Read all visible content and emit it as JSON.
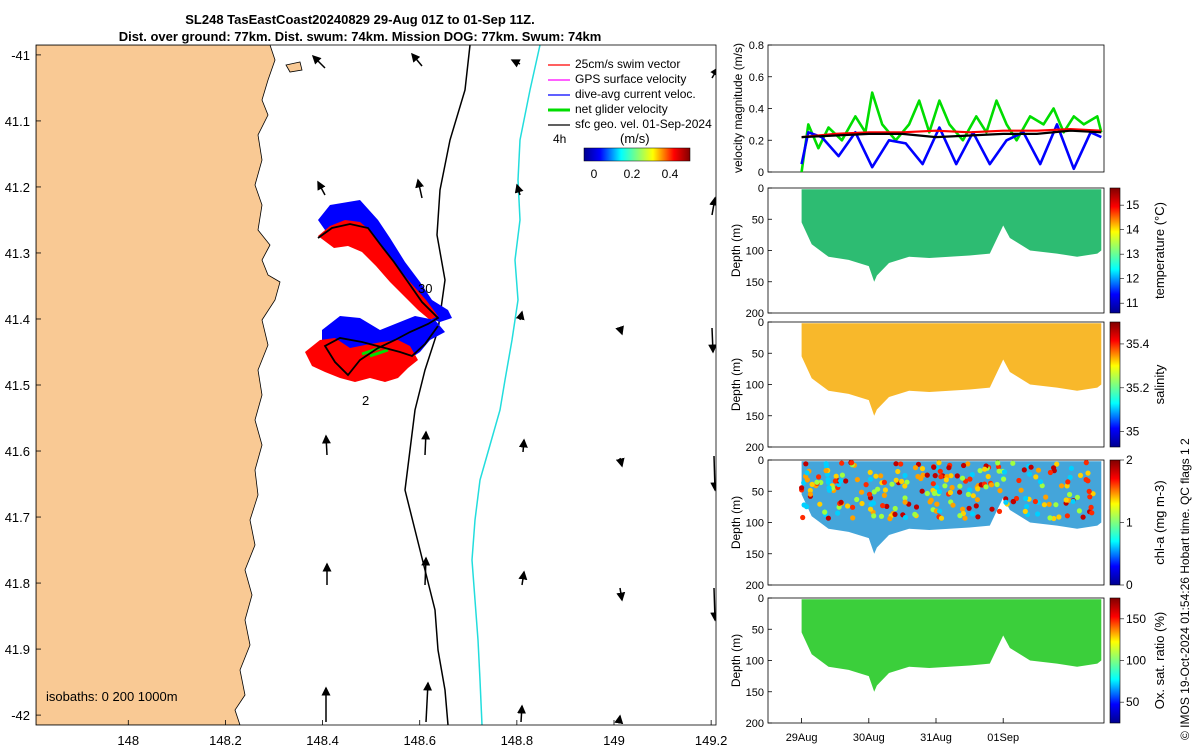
{
  "header": {
    "title_line1": "SL248 TasEastCoast20240829 29-Aug 01Z to 01-Sep 11Z.",
    "title_line2": "Dist. over ground: 77km. Dist. swum: 74km. Mission DOG: 77km. Swum: 74km"
  },
  "credit": "© IMOS 19-Oct-2024 01:54:26 Hobart time. QC flags 1  2",
  "colors": {
    "land": "#f9c994",
    "swim": "#ff0000",
    "gps": "#ff00ff",
    "current": "#0000ff",
    "net": "#00dd00",
    "sfc": "#000000",
    "isobath": "#00cccc",
    "track": "#000000"
  },
  "map": {
    "x_ticks": [
      "148",
      "148.2",
      "148.4",
      "148.6",
      "148.8",
      "149",
      "149.2"
    ],
    "y_ticks": [
      "-41",
      "41.1",
      "41.2",
      "41.3",
      "41.4",
      "41.5",
      "41.6",
      "41.7",
      "41.8",
      "41.9",
      "-42"
    ],
    "lon_range": [
      147.81,
      149.21
    ],
    "lat_range": [
      -42.015,
      -40.985
    ],
    "legend": [
      {
        "label": "25cm/s swim vector",
        "color": "#ff0000"
      },
      {
        "label": "GPS surface velocity",
        "color": "#ff00ff"
      },
      {
        "label": "dive-avg current veloc.",
        "color": "#0000ff"
      },
      {
        "label": "net glider velocity",
        "color": "#00dd00"
      },
      {
        "label": "sfc geo. vel. 01-Sep-2024",
        "color": "#000000"
      }
    ],
    "legend_extra": "4h",
    "colorbar_label": "(m/s)",
    "colorbar_ticks": [
      "0",
      "0.2",
      "0.4"
    ],
    "isobath_label": "isobaths: 0   200  1000m",
    "annotations": [
      "30",
      "2"
    ]
  },
  "chart_data": [
    {
      "type": "line",
      "title": "",
      "ylabel": "velocity magnitude (m/s)",
      "ylim": [
        0,
        0.8
      ],
      "yticks": [
        "0",
        "0.2",
        "0.4",
        "0.6",
        "0.8"
      ],
      "xlim_days": [
        28.5,
        33.5
      ],
      "series": [
        {
          "name": "net glider velocity",
          "color": "#00dd00",
          "x": [
            29.0,
            29.1,
            29.25,
            29.4,
            29.6,
            29.8,
            29.95,
            30.05,
            30.2,
            30.4,
            30.6,
            30.75,
            30.9,
            31.05,
            31.2,
            31.4,
            31.6,
            31.75,
            31.9,
            32.05,
            32.2,
            32.4,
            32.6,
            32.75,
            32.9,
            33.05,
            33.2,
            33.4,
            33.46
          ],
          "y": [
            0.0,
            0.3,
            0.15,
            0.28,
            0.2,
            0.35,
            0.25,
            0.5,
            0.3,
            0.2,
            0.3,
            0.45,
            0.25,
            0.45,
            0.3,
            0.2,
            0.35,
            0.25,
            0.45,
            0.3,
            0.2,
            0.35,
            0.3,
            0.4,
            0.25,
            0.35,
            0.3,
            0.35,
            0.25
          ]
        },
        {
          "name": "dive-avg current veloc.",
          "color": "#0000ff",
          "x": [
            29.0,
            29.1,
            29.3,
            29.55,
            29.8,
            30.05,
            30.3,
            30.55,
            30.8,
            31.05,
            31.3,
            31.55,
            31.8,
            32.05,
            32.3,
            32.55,
            32.8,
            33.05,
            33.3,
            33.46
          ],
          "y": [
            0.05,
            0.25,
            0.22,
            0.1,
            0.25,
            0.03,
            0.2,
            0.18,
            0.05,
            0.28,
            0.05,
            0.25,
            0.05,
            0.2,
            0.25,
            0.05,
            0.3,
            0.02,
            0.25,
            0.22
          ]
        },
        {
          "name": "swim vector",
          "color": "#ff0000",
          "x": [
            29.0,
            29.5,
            30.0,
            30.5,
            31.0,
            31.5,
            32.0,
            32.5,
            33.0,
            33.46
          ],
          "y": [
            0.22,
            0.24,
            0.25,
            0.25,
            0.26,
            0.25,
            0.26,
            0.26,
            0.27,
            0.26
          ]
        },
        {
          "name": "sfc geo. vel.",
          "color": "#000000",
          "x": [
            29.0,
            29.5,
            30.0,
            30.5,
            31.0,
            31.5,
            32.0,
            32.5,
            33.0,
            33.46
          ],
          "y": [
            0.22,
            0.23,
            0.24,
            0.24,
            0.22,
            0.23,
            0.24,
            0.24,
            0.26,
            0.25
          ]
        }
      ]
    },
    {
      "type": "scatter",
      "ylabel": "Depth (m)",
      "cbar_label": "temperature (°C)",
      "ylim": [
        200,
        0
      ],
      "yticks": [
        "0",
        "50",
        "100",
        "150",
        "200"
      ],
      "cbar_ticks": [
        "11",
        "12",
        "13",
        "14",
        "15"
      ],
      "cbar_range": [
        10.6,
        15.7
      ],
      "fill_color": "#22b86a",
      "x_days": [
        29.0,
        29.15,
        29.4,
        29.7,
        30.0,
        30.08,
        30.12,
        30.3,
        30.6,
        30.9,
        31.2,
        31.5,
        31.8,
        32.0,
        32.1,
        32.4,
        32.8,
        33.1,
        33.4,
        33.46
      ],
      "max_depth_m": [
        55,
        90,
        110,
        115,
        125,
        150,
        140,
        120,
        110,
        112,
        110,
        108,
        105,
        60,
        80,
        100,
        105,
        110,
        105,
        100
      ]
    },
    {
      "type": "scatter",
      "ylabel": "Depth (m)",
      "cbar_label": "salinity",
      "ylim": [
        200,
        0
      ],
      "yticks": [
        "0",
        "50",
        "100",
        "150",
        "200"
      ],
      "cbar_ticks": [
        "35",
        "35.2",
        "35.4"
      ],
      "cbar_range": [
        34.93,
        35.5
      ],
      "fill_color": "#f8b420",
      "x_days": [
        29.0,
        29.15,
        29.4,
        29.7,
        30.0,
        30.08,
        30.12,
        30.3,
        30.6,
        30.9,
        31.2,
        31.5,
        31.8,
        32.0,
        32.1,
        32.4,
        32.8,
        33.1,
        33.4,
        33.46
      ],
      "max_depth_m": [
        55,
        90,
        110,
        115,
        125,
        150,
        140,
        120,
        110,
        112,
        110,
        108,
        105,
        60,
        80,
        100,
        105,
        110,
        105,
        100
      ]
    },
    {
      "type": "scatter",
      "ylabel": "Depth (m)",
      "cbar_label": "chl-a (mg m-3)",
      "ylim": [
        200,
        0
      ],
      "yticks": [
        "0",
        "50",
        "100",
        "150",
        "200"
      ],
      "cbar_ticks": [
        "0",
        "1",
        "2"
      ],
      "cbar_range": [
        0,
        2
      ],
      "fill_color": "#3aa0d8",
      "x_days": [
        29.0,
        29.15,
        29.4,
        29.7,
        30.0,
        30.08,
        30.12,
        30.3,
        30.6,
        30.9,
        31.2,
        31.5,
        31.8,
        32.0,
        32.1,
        32.4,
        32.8,
        33.1,
        33.4,
        33.46
      ],
      "max_depth_m": [
        55,
        90,
        110,
        115,
        125,
        150,
        140,
        120,
        110,
        112,
        110,
        108,
        105,
        60,
        80,
        100,
        105,
        110,
        105,
        100
      ]
    },
    {
      "type": "scatter",
      "ylabel": "Depth (m)",
      "cbar_label": "Ox. sat. ratio (%)",
      "ylim": [
        200,
        0
      ],
      "yticks": [
        "0",
        "50",
        "100",
        "150",
        "200"
      ],
      "cbar_ticks": [
        "50",
        "100",
        "150"
      ],
      "cbar_range": [
        25,
        175
      ],
      "fill_color": "#30cc30",
      "x_days": [
        29.0,
        29.15,
        29.4,
        29.7,
        30.0,
        30.08,
        30.12,
        30.3,
        30.6,
        30.9,
        31.2,
        31.5,
        31.8,
        32.0,
        32.1,
        32.4,
        32.8,
        33.1,
        33.4,
        33.46
      ],
      "max_depth_m": [
        55,
        90,
        110,
        115,
        125,
        150,
        140,
        120,
        110,
        112,
        110,
        108,
        105,
        60,
        80,
        100,
        105,
        110,
        105,
        100
      ]
    }
  ],
  "time_axis": {
    "ticks": [
      "29Aug",
      "30Aug",
      "31Aug",
      "01Sep"
    ],
    "tick_days": [
      29,
      30,
      31,
      32
    ]
  }
}
